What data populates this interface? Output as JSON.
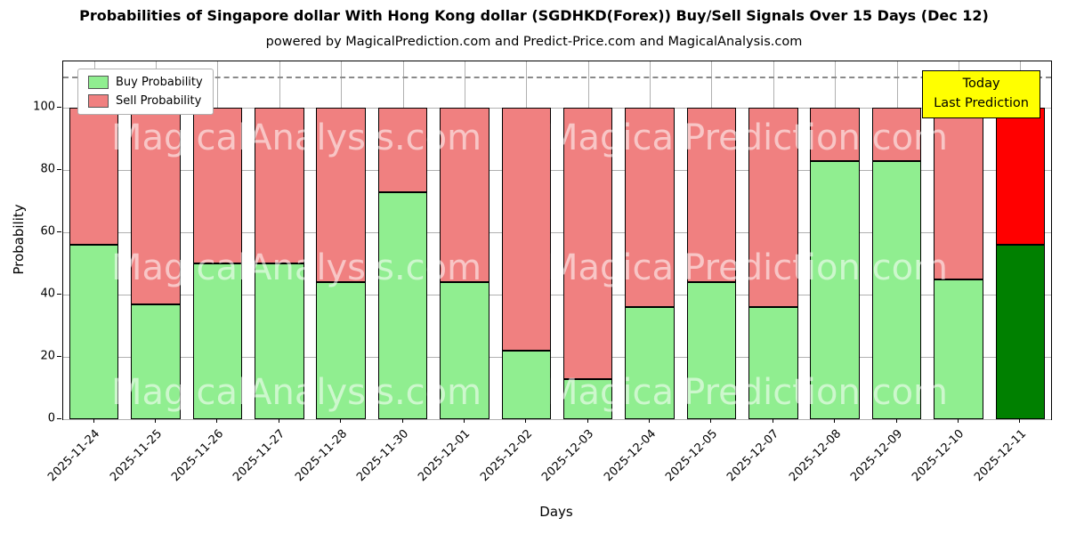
{
  "title": "Probabilities of Singapore dollar With Hong Kong dollar (SGDHKD(Forex)) Buy/Sell Signals Over 15 Days (Dec 12)",
  "subtitle": "powered by MagicalPrediction.com and Predict-Price.com and MagicalAnalysis.com",
  "watermarks": [
    "MagicalAnalysis.com",
    "MagicalPrediction.com"
  ],
  "annotation": {
    "lines": [
      "Today",
      "Last Prediction"
    ],
    "bg_color": "#ffff00"
  },
  "legend": {
    "items": [
      {
        "label": "Buy Probability",
        "color": "#90ee90"
      },
      {
        "label": "Sell Probability",
        "color": "#f08080"
      }
    ]
  },
  "chart_data": {
    "type": "bar",
    "stacked": true,
    "title": "Probabilities of Singapore dollar With Hong Kong dollar (SGDHKD(Forex)) Buy/Sell Signals Over 15 Days (Dec 12)",
    "xlabel": "Days",
    "ylabel": "Probability",
    "ylim": [
      0,
      115
    ],
    "yticks": [
      0,
      20,
      40,
      60,
      80,
      100
    ],
    "dashed_line_y": 110,
    "grid": true,
    "legend_position": "upper left",
    "categories": [
      "2025-11-24",
      "2025-11-25",
      "2025-11-26",
      "2025-11-27",
      "2025-11-28",
      "2025-11-30",
      "2025-12-01",
      "2025-12-02",
      "2025-12-03",
      "2025-12-04",
      "2025-12-05",
      "2025-12-07",
      "2025-12-08",
      "2025-12-09",
      "2025-12-10",
      "2025-12-11"
    ],
    "series": [
      {
        "name": "Buy Probability",
        "color": "#90ee90",
        "values": [
          56,
          37,
          50,
          50,
          44,
          73,
          44,
          22,
          13,
          36,
          44,
          36,
          83,
          83,
          45,
          56
        ]
      },
      {
        "name": "Sell Probability",
        "color": "#f08080",
        "values": [
          44,
          63,
          50,
          50,
          56,
          27,
          56,
          78,
          87,
          64,
          56,
          64,
          17,
          17,
          55,
          44
        ]
      }
    ],
    "today": {
      "index": 15,
      "buy_color": "#008000",
      "sell_color": "#ff0000"
    }
  }
}
